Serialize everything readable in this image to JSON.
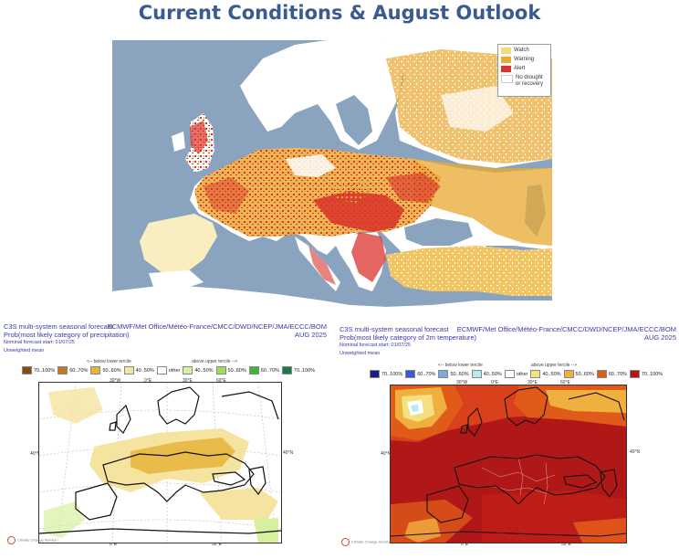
{
  "page": {
    "title": "Current Conditions & August Outlook"
  },
  "drought_map": {
    "legend": [
      {
        "label": "Watch",
        "color": "#f3dc7a"
      },
      {
        "label": "Warning",
        "color": "#e8a935"
      },
      {
        "label": "Alert",
        "color": "#d9342b"
      },
      {
        "label": "No drought or recovery",
        "color": "#ffffff"
      }
    ],
    "colors": {
      "sea": "#8aa3bf",
      "land": "#ffffff"
    }
  },
  "precip_panel": {
    "header_left": "C3S multi-system seasonal forecast",
    "header_right": "ECMWF/Met Office/Météo-France/CMCC/DWD/NCEP/JMA/ECCC/BOM",
    "subtitle": "Prob(most likely category of precipitation)",
    "month": "AUG 2025",
    "forecast_start": "Nominal forecast start: 01/07/25",
    "mean_type": "Unweighted mean",
    "below_title": "<-- below lower tercile",
    "above_title": "above upper tercile -->",
    "scale": [
      {
        "label": "70..100%",
        "color": "#8a4a10"
      },
      {
        "label": "60..70%",
        "color": "#c07a22"
      },
      {
        "label": "50..60%",
        "color": "#e6b43a"
      },
      {
        "label": "40..50%",
        "color": "#f5e3a0"
      },
      {
        "label": "other",
        "color": "#ffffff"
      },
      {
        "label": "40..50%",
        "color": "#d7f0a0"
      },
      {
        "label": "50..60%",
        "color": "#9ade5a"
      },
      {
        "label": "60..70%",
        "color": "#3ab83a"
      },
      {
        "label": "70..100%",
        "color": "#1a7a4a"
      }
    ],
    "lon_labels": [
      "30°W",
      "0°E",
      "30°E",
      "60°E"
    ],
    "bottom_labels": [
      "0°E",
      "30°E"
    ],
    "lat_labels": [
      "40°N",
      "40°N"
    ],
    "logo_text": "Climate Change Service"
  },
  "temp_panel": {
    "header_left": "C3S multi-system seasonal forecast",
    "header_right": "ECMWF/Met Office/Météo-France/CMCC/DWD/NCEP/JMA/ECCC/BOM",
    "subtitle": "Prob(most likely category of 2m temperature)",
    "month": "AUG 2025",
    "forecast_start": "Nominal forecast start: 01/07/25",
    "mean_type": "Unweighted mean",
    "below_title": "<-- below lower tercile",
    "above_title": "above upper tercile -->",
    "scale": [
      {
        "label": "70..100%",
        "color": "#1a1a8a"
      },
      {
        "label": "60..70%",
        "color": "#3a5ad0"
      },
      {
        "label": "50..60%",
        "color": "#7aaae0"
      },
      {
        "label": "40..50%",
        "color": "#b8e8f0"
      },
      {
        "label": "other",
        "color": "#ffffff"
      },
      {
        "label": "40..50%",
        "color": "#f5e080"
      },
      {
        "label": "50..60%",
        "color": "#f0b040"
      },
      {
        "label": "60..70%",
        "color": "#e05a1a"
      },
      {
        "label": "70..100%",
        "color": "#b01818"
      }
    ],
    "lon_labels": [
      "30°W",
      "0°E",
      "30°E",
      "60°E"
    ],
    "bottom_labels": [
      "0°E",
      "30°E"
    ],
    "lat_labels": [
      "40°N",
      "40°N"
    ],
    "logo_text": "Climate Change Service"
  }
}
